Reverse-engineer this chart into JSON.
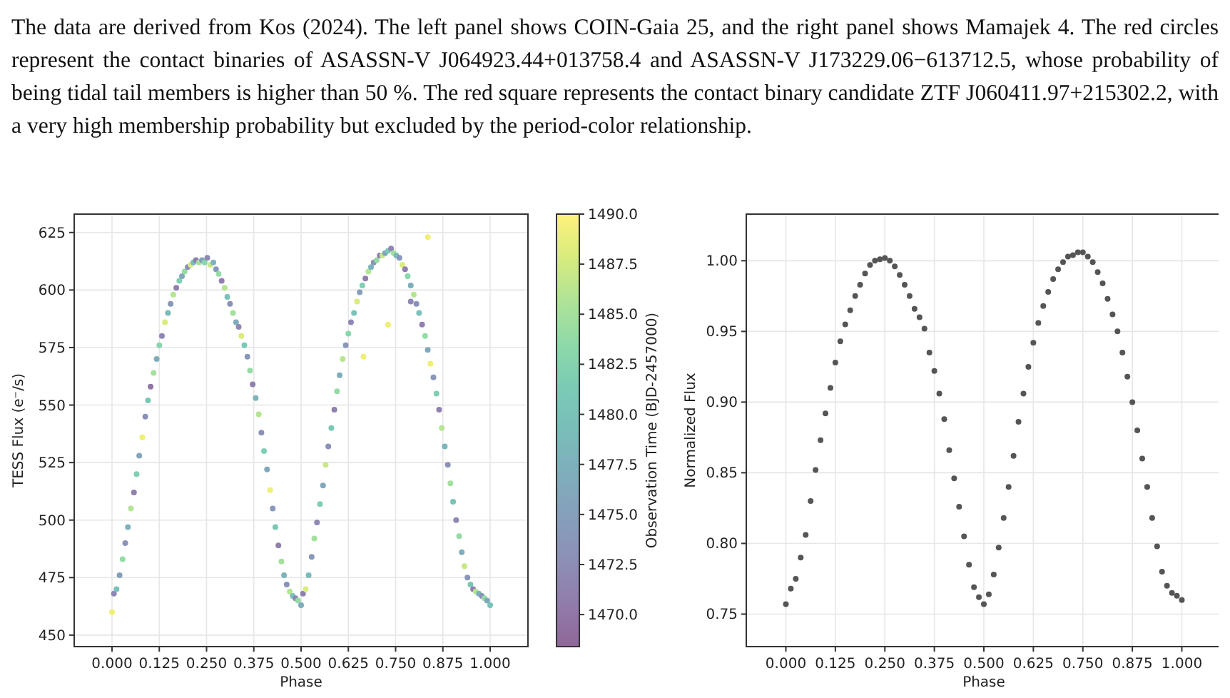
{
  "chart_data": [
    {
      "type": "scatter",
      "annotations": [
        "The data are derived from Kos (2024). The left panel shows COIN-Gaia 25, and the right panel shows Mamajek 4. The red circles represent the contact binaries of ASASSN-V J064923.44+013758.4 and ASASSN-V J173229.06−613712.5, whose probability of being tidal tail members is higher than 50 %. The red square represents the contact binary candidate ZTF J060411.97+215302.2, with a very high membership probability but excluded by the period-color relationship."
      ],
      "xlabel": "Phase",
      "ylabel": "TESS Flux (e⁻/s)",
      "clabel": "Observation Time (BJD-2457000)",
      "marker": "circle",
      "grid": true,
      "xlim": [
        -0.1,
        1.1
      ],
      "ylim": [
        445,
        633
      ],
      "xticks": [
        {
          "value": 0,
          "label": "0.000"
        },
        {
          "value": 0.125,
          "label": "0.125"
        },
        {
          "value": 0.25,
          "label": "0.250"
        },
        {
          "value": 0.375,
          "label": "0.375"
        },
        {
          "value": 0.5,
          "label": "0.500"
        },
        {
          "value": 0.625,
          "label": "0.625"
        },
        {
          "value": 0.75,
          "label": "0.750"
        },
        {
          "value": 0.875,
          "label": "0.875"
        },
        {
          "value": 1,
          "label": "1.000"
        }
      ],
      "yticks": [
        450,
        475,
        500,
        525,
        550,
        575,
        600,
        625
      ],
      "clim": [
        1468.4,
        1490
      ],
      "cticks": [
        {
          "value": 1470,
          "label": "1470.0"
        },
        {
          "value": 1472.5,
          "label": "1472.5"
        },
        {
          "value": 1475,
          "label": "1475.0"
        },
        {
          "value": 1477.5,
          "label": "1477.5"
        },
        {
          "value": 1480,
          "label": "1480.0"
        },
        {
          "value": 1482.5,
          "label": "1482.5"
        },
        {
          "value": 1485,
          "label": "1485.0"
        },
        {
          "value": 1487.5,
          "label": "1487.5"
        },
        {
          "value": 1490,
          "label": "1490.0"
        }
      ],
      "x": [
        0,
        0.005,
        0.012,
        0.02,
        0.028,
        0.035,
        0.042,
        0.05,
        0.058,
        0.065,
        0.072,
        0.08,
        0.088,
        0.095,
        0.102,
        0.11,
        0.118,
        0.125,
        0.132,
        0.14,
        0.148,
        0.155,
        0.162,
        0.17,
        0.178,
        0.185,
        0.192,
        0.2,
        0.208,
        0.215,
        0.222,
        0.23,
        0.238,
        0.245,
        0.252,
        0.26,
        0.268,
        0.275,
        0.282,
        0.29,
        0.298,
        0.305,
        0.312,
        0.32,
        0.328,
        0.335,
        0.342,
        0.35,
        0.358,
        0.365,
        0.372,
        0.38,
        0.388,
        0.395,
        0.402,
        0.41,
        0.418,
        0.425,
        0.432,
        0.44,
        0.448,
        0.455,
        0.462,
        0.47,
        0.478,
        0.485,
        0.492,
        0.5,
        0.505,
        0.512,
        0.52,
        0.528,
        0.535,
        0.542,
        0.55,
        0.558,
        0.565,
        0.572,
        0.58,
        0.588,
        0.595,
        0.602,
        0.61,
        0.618,
        0.625,
        0.632,
        0.64,
        0.648,
        0.655,
        0.662,
        0.67,
        0.678,
        0.685,
        0.692,
        0.7,
        0.708,
        0.715,
        0.722,
        0.73,
        0.738,
        0.745,
        0.752,
        0.76,
        0.768,
        0.775,
        0.782,
        0.79,
        0.798,
        0.805,
        0.812,
        0.82,
        0.828,
        0.835,
        0.842,
        0.85,
        0.858,
        0.865,
        0.872,
        0.88,
        0.888,
        0.895,
        0.902,
        0.91,
        0.918,
        0.925,
        0.932,
        0.94,
        0.948,
        0.955,
        0.962,
        0.97,
        0.978,
        0.985,
        0.992,
        1,
        0.835,
        0.73,
        0.665,
        0.79
      ],
      "values": [
        460,
        468,
        470,
        476,
        483,
        490,
        497,
        505,
        512,
        520,
        528,
        536,
        545,
        552,
        558,
        564,
        570,
        576,
        580,
        586,
        590,
        594,
        598,
        601,
        604,
        606,
        608,
        610,
        611,
        612,
        613,
        612,
        613,
        612,
        614,
        611,
        612,
        609,
        607,
        604,
        601,
        597,
        594,
        590,
        586,
        584,
        580,
        576,
        571,
        565,
        559,
        553,
        546,
        538,
        530,
        522,
        513,
        505,
        497,
        489,
        482,
        476,
        472,
        469,
        467,
        466,
        465,
        463,
        468,
        470,
        476,
        484,
        492,
        499,
        507,
        515,
        524,
        532,
        540,
        548,
        556,
        563,
        570,
        576,
        581,
        586,
        590,
        595,
        599,
        602,
        605,
        608,
        610,
        612,
        613,
        615,
        615,
        616,
        617,
        618,
        616,
        615,
        614,
        611,
        609,
        606,
        602,
        598,
        594,
        590,
        585,
        580,
        574,
        568,
        562,
        555,
        548,
        540,
        532,
        524,
        516,
        508,
        500,
        493,
        486,
        480,
        475,
        472,
        470,
        469,
        468,
        467,
        466,
        465,
        463,
        623,
        585,
        571,
        595
      ],
      "cvalues": [
        1489,
        1472,
        1480,
        1475,
        1484,
        1473,
        1478,
        1486,
        1471,
        1482,
        1476,
        1489,
        1473,
        1481,
        1470,
        1485,
        1477,
        1483,
        1472,
        1488,
        1479,
        1474,
        1486,
        1471,
        1482,
        1476,
        1484,
        1473,
        1488,
        1479,
        1471,
        1485,
        1475,
        1483,
        1472,
        1487,
        1478,
        1474,
        1484,
        1471,
        1486,
        1480,
        1473,
        1485,
        1477,
        1472,
        1488,
        1481,
        1474,
        1484,
        1471,
        1478,
        1486,
        1473,
        1482,
        1476,
        1489,
        1474,
        1481,
        1471,
        1485,
        1478,
        1473,
        1486,
        1480,
        1472,
        1484,
        1477,
        1471,
        1488,
        1479,
        1474,
        1485,
        1472,
        1482,
        1476,
        1487,
        1473,
        1481,
        1471,
        1484,
        1477,
        1486,
        1474,
        1483,
        1472,
        1480,
        1488,
        1475,
        1482,
        1471,
        1486,
        1478,
        1473,
        1484,
        1471,
        1487,
        1476,
        1481,
        1472,
        1485,
        1479,
        1474,
        1488,
        1471,
        1483,
        1477,
        1486,
        1473,
        1480,
        1471,
        1484,
        1476,
        1489,
        1474,
        1482,
        1471,
        1486,
        1478,
        1473,
        1485,
        1480,
        1472,
        1484,
        1477,
        1487,
        1474,
        1481,
        1471,
        1486,
        1478,
        1473,
        1484,
        1476,
        1480,
        1489,
        1489,
        1489,
        1472
      ]
    },
    {
      "type": "scatter",
      "xlabel": "Phase",
      "ylabel": "Normalized Flux",
      "marker": "circle",
      "grid": true,
      "color": "#555555",
      "xlim": [
        -0.1,
        1.1
      ],
      "ylim": [
        0.727,
        1.033
      ],
      "xticks": [
        {
          "value": 0,
          "label": "0.000"
        },
        {
          "value": 0.125,
          "label": "0.125"
        },
        {
          "value": 0.25,
          "label": "0.250"
        },
        {
          "value": 0.375,
          "label": "0.375"
        },
        {
          "value": 0.5,
          "label": "0.500"
        },
        {
          "value": 0.625,
          "label": "0.625"
        },
        {
          "value": 0.75,
          "label": "0.750"
        },
        {
          "value": 0.875,
          "label": "0.875"
        },
        {
          "value": 1,
          "label": "1.000"
        }
      ],
      "yticks": [
        {
          "value": 0.75,
          "label": "0.75"
        },
        {
          "value": 0.8,
          "label": "0.80"
        },
        {
          "value": 0.85,
          "label": "0.85"
        },
        {
          "value": 0.9,
          "label": "0.90"
        },
        {
          "value": 0.95,
          "label": "0.95"
        },
        {
          "value": 1,
          "label": "1.00"
        }
      ],
      "x": [
        0,
        0.0125,
        0.025,
        0.0375,
        0.05,
        0.0625,
        0.075,
        0.0875,
        0.1,
        0.1125,
        0.125,
        0.1375,
        0.15,
        0.1625,
        0.175,
        0.1875,
        0.2,
        0.2125,
        0.225,
        0.2375,
        0.25,
        0.2625,
        0.275,
        0.2875,
        0.3,
        0.3125,
        0.325,
        0.3375,
        0.35,
        0.3625,
        0.375,
        0.3875,
        0.4,
        0.4125,
        0.425,
        0.4375,
        0.45,
        0.4625,
        0.475,
        0.4875,
        0.5,
        0.5125,
        0.525,
        0.5375,
        0.55,
        0.5625,
        0.575,
        0.5875,
        0.6,
        0.6125,
        0.625,
        0.6375,
        0.65,
        0.6625,
        0.675,
        0.6875,
        0.7,
        0.7125,
        0.725,
        0.7375,
        0.75,
        0.7625,
        0.775,
        0.7875,
        0.8,
        0.8125,
        0.825,
        0.8375,
        0.85,
        0.8625,
        0.875,
        0.8875,
        0.9,
        0.9125,
        0.925,
        0.9375,
        0.95,
        0.9625,
        0.975,
        0.9875,
        1
      ],
      "values": [
        0.757,
        0.768,
        0.775,
        0.79,
        0.806,
        0.83,
        0.852,
        0.873,
        0.892,
        0.91,
        0.928,
        0.943,
        0.955,
        0.965,
        0.975,
        0.983,
        0.991,
        0.997,
        1,
        1.001,
        1.002,
        1,
        0.996,
        0.99,
        0.983,
        0.975,
        0.966,
        0.96,
        0.952,
        0.935,
        0.922,
        0.906,
        0.888,
        0.866,
        0.846,
        0.826,
        0.805,
        0.785,
        0.769,
        0.762,
        0.757,
        0.764,
        0.778,
        0.797,
        0.818,
        0.84,
        0.862,
        0.886,
        0.906,
        0.925,
        0.942,
        0.956,
        0.968,
        0.978,
        0.987,
        0.994,
        0.999,
        1.003,
        1.004,
        1.006,
        1.006,
        1.003,
        0.999,
        0.992,
        0.984,
        0.973,
        0.962,
        0.95,
        0.935,
        0.918,
        0.9,
        0.88,
        0.86,
        0.84,
        0.818,
        0.798,
        0.78,
        0.77,
        0.765,
        0.763,
        0.76
      ]
    }
  ]
}
